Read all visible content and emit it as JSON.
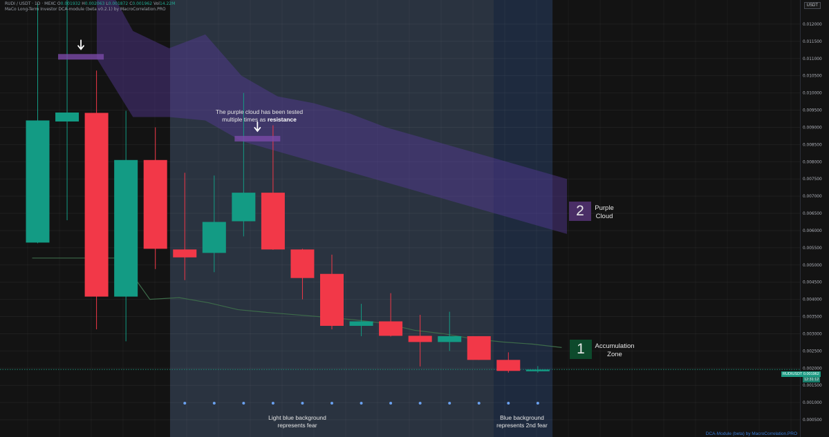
{
  "header": {
    "line1_prefix": "RUDI / USDT · 1D · MEXC",
    "o_label": "O",
    "o_value": "0.001932",
    "h_label": "H",
    "h_value": "0.002063",
    "l_label": "L",
    "l_value": "0.001872",
    "c_label": "C",
    "c_value": "0.001962",
    "vol_label": "Vol",
    "vol_value": "14.22M",
    "line2": "MaCo Long-Term Investor DCA-module (beta v0.2.1) by MacroCorrelation.PRO"
  },
  "axis": {
    "currency": "USDT",
    "ticks": [
      "0.012000",
      "0.011500",
      "0.011000",
      "0.010500",
      "0.010000",
      "0.009500",
      "0.009000",
      "0.008500",
      "0.008000",
      "0.007500",
      "0.007000",
      "0.006500",
      "0.006000",
      "0.005500",
      "0.005000",
      "0.004500",
      "0.004000",
      "0.003500",
      "0.003000",
      "0.002500",
      "0.002000",
      "0.001500",
      "0.001000",
      "0.000500"
    ]
  },
  "price_tag": {
    "symbol": "RUDIUSDT",
    "price": "0.001962",
    "time": "12:31:12"
  },
  "annotations": {
    "cloud_note_line1": "The purple cloud has been tested",
    "cloud_note_line2_prefix": "multiple times as",
    "cloud_note_line2_bold": "resistance",
    "light_bg_line1": "Light blue background",
    "light_bg_line2": "represents fear",
    "blue_bg_line1": "Blue background",
    "blue_bg_line2": "represents 2nd fear"
  },
  "legend": {
    "purple_num": "2",
    "purple_line1": "Purple",
    "purple_line2": "Cloud",
    "accum_num": "1",
    "accum_line1": "Accumulation",
    "accum_line2": "Zone"
  },
  "footer": "DCA-Module (beta) by MacroCorrelation.PRO",
  "colors": {
    "up": "#139b84",
    "down": "#f23848",
    "cloud": "#5b3ca0",
    "light_fear": "#2a3340",
    "blue_fear": "#1e2a3e",
    "accum_line": "#3d6b4a",
    "dots": "#6aa0ee",
    "purple_box": "#4a2e66",
    "green_box": "#0d4a2c"
  },
  "chart_data": {
    "type": "candlestick",
    "ylim": [
      0.0003,
      0.0124
    ],
    "candles": [
      {
        "o": 0.00565,
        "h": 0.01262,
        "l": 0.00563,
        "c": 0.0092
      },
      {
        "o": 0.00917,
        "h": 0.014,
        "l": 0.0063,
        "c": 0.00943
      },
      {
        "o": 0.00942,
        "h": 0.01065,
        "l": 0.00313,
        "c": 0.00408
      },
      {
        "o": 0.00408,
        "h": 0.00948,
        "l": 0.00278,
        "c": 0.00805
      },
      {
        "o": 0.00805,
        "h": 0.009,
        "l": 0.00488,
        "c": 0.00547
      },
      {
        "o": 0.00545,
        "h": 0.00768,
        "l": 0.00456,
        "c": 0.00522
      },
      {
        "o": 0.00535,
        "h": 0.0076,
        "l": 0.00479,
        "c": 0.00625
      },
      {
        "o": 0.00627,
        "h": 0.01,
        "l": 0.00583,
        "c": 0.0071
      },
      {
        "o": 0.0071,
        "h": 0.00906,
        "l": 0.00544,
        "c": 0.00545
      },
      {
        "o": 0.00545,
        "h": 0.00547,
        "l": 0.004,
        "c": 0.00462
      },
      {
        "o": 0.00474,
        "h": 0.0053,
        "l": 0.00313,
        "c": 0.00323
      },
      {
        "o": 0.00323,
        "h": 0.00387,
        "l": 0.00293,
        "c": 0.00336
      },
      {
        "o": 0.00336,
        "h": 0.00418,
        "l": 0.00292,
        "c": 0.00294
      },
      {
        "o": 0.00294,
        "h": 0.00355,
        "l": 0.00205,
        "c": 0.00276
      },
      {
        "o": 0.00276,
        "h": 0.00364,
        "l": 0.0025,
        "c": 0.00293
      },
      {
        "o": 0.00293,
        "h": 0.00293,
        "l": 0.00224,
        "c": 0.00224
      },
      {
        "o": 0.00224,
        "h": 0.00246,
        "l": 0.00187,
        "c": 0.00192
      },
      {
        "o": 0.00193,
        "h": 0.00206,
        "l": 0.00187,
        "c": 0.00196
      }
    ],
    "accumulation_line": [
      0.0052,
      0.0052,
      0.0052,
      0.0052,
      0.004,
      0.00405,
      0.0039,
      0.0037,
      0.00362,
      0.00355,
      0.00348,
      0.0034,
      0.0033,
      0.0031,
      0.003,
      0.00285,
      0.00276,
      0.0027,
      0.0026
    ],
    "cloud_upper": [
      0.0137,
      0.0118,
      0.0113,
      0.0117,
      0.0105,
      0.0099,
      0.0097,
      0.0094,
      0.009,
      0.0087,
      0.0084,
      0.0081,
      0.0078,
      0.0075
    ],
    "cloud_lower": [
      0.011,
      0.0093,
      0.0093,
      0.0092,
      0.0086,
      0.0083,
      0.008,
      0.0077,
      0.0074,
      0.0071,
      0.0068,
      0.0065,
      0.0062,
      0.0059
    ],
    "fear_light_range": [
      5,
      15
    ],
    "fear_blue_range": [
      16,
      17
    ],
    "fear_dot_candles": [
      5,
      6,
      7,
      8,
      9,
      10,
      11,
      12,
      13,
      14,
      15,
      16,
      17
    ],
    "resistance_markers": [
      {
        "candle": 1,
        "value": 0.01105
      },
      {
        "candle": 7,
        "value": 0.00867
      }
    ],
    "current_price": 0.001962
  }
}
